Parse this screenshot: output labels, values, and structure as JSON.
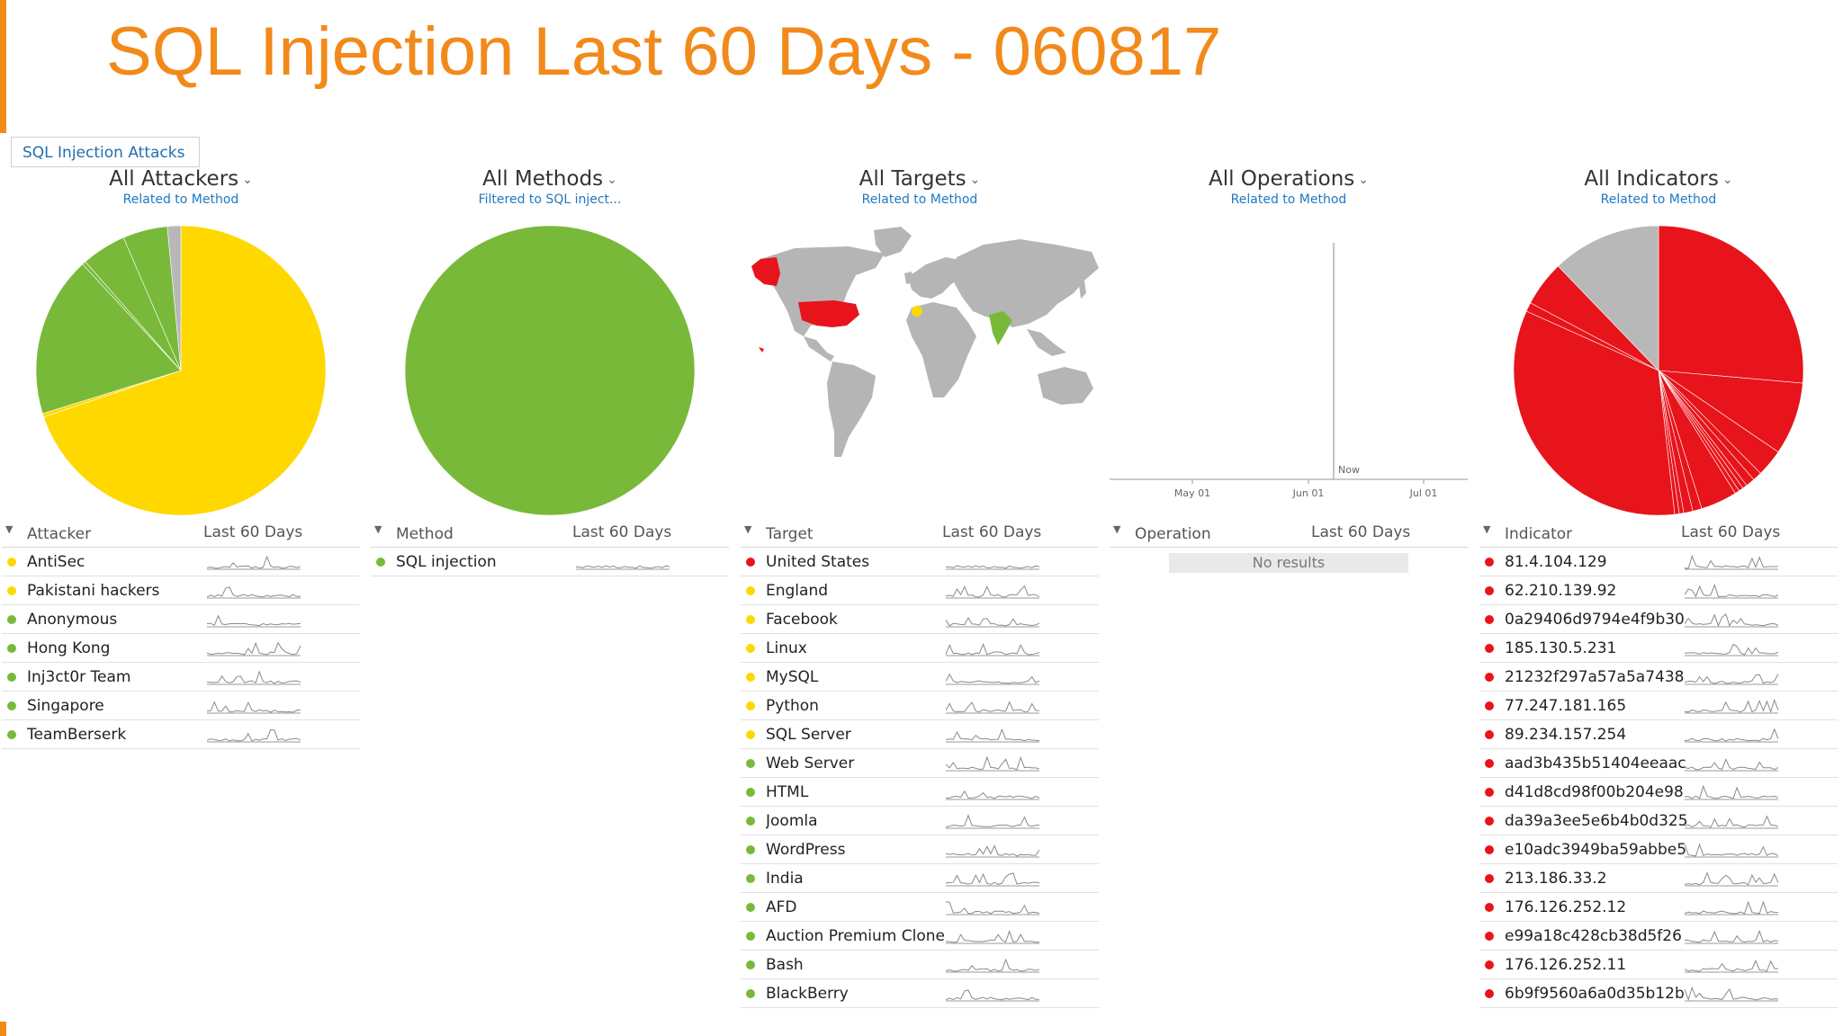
{
  "title": "SQL Injection Last 60 Days - 060817",
  "tab_label": "SQL Injection Attacks",
  "colors": {
    "accent": "#f28a1b",
    "red": "#e8141b",
    "yellow": "#ffd800",
    "green": "#79b93a",
    "gray": "#b8b8b8",
    "link": "#1f78c1"
  },
  "panels": {
    "attackers": {
      "title": "All Attackers",
      "subtitle": "Related to Method",
      "col1": "Attacker",
      "col2": "Last 60 Days",
      "chart_data": {
        "type": "pie",
        "slices": [
          {
            "label": "AntiSec",
            "value": 70,
            "color": "#ffd800"
          },
          {
            "label": "Pakistani hackers",
            "value": 0.4,
            "color": "#ffd800"
          },
          {
            "label": "Anonymous",
            "value": 18,
            "color": "#79b93a"
          },
          {
            "label": "Hong Kong",
            "value": 0.4,
            "color": "#79b93a"
          },
          {
            "label": "Inj3ct0r Team",
            "value": 5,
            "color": "#79b93a"
          },
          {
            "label": "Singapore",
            "value": 5,
            "color": "#79b93a"
          },
          {
            "label": "TeamBerserk",
            "value": 1.5,
            "color": "#b8b8b8"
          }
        ]
      },
      "rows": [
        {
          "label": "AntiSec",
          "status": "yellow"
        },
        {
          "label": "Pakistani hackers",
          "status": "yellow"
        },
        {
          "label": "Anonymous",
          "status": "green"
        },
        {
          "label": "Hong Kong",
          "status": "green"
        },
        {
          "label": "Inj3ct0r Team",
          "status": "green"
        },
        {
          "label": "Singapore",
          "status": "green"
        },
        {
          "label": "TeamBerserk",
          "status": "green"
        }
      ]
    },
    "methods": {
      "title": "All Methods",
      "subtitle": "Filtered to SQL inject...",
      "col1": "Method",
      "col2": "Last 60 Days",
      "chart_data": {
        "type": "pie",
        "slices": [
          {
            "label": "SQL injection",
            "value": 100,
            "color": "#79b93a"
          }
        ]
      },
      "rows": [
        {
          "label": "SQL injection",
          "status": "green"
        }
      ]
    },
    "targets": {
      "title": "All Targets",
      "subtitle": "Related to Method",
      "col1": "Target",
      "col2": "Last 60 Days",
      "map_highlights": [
        {
          "region": "United States",
          "color": "#e8141b"
        },
        {
          "region": "Alaska",
          "color": "#e8141b"
        },
        {
          "region": "England",
          "color": "#ffd800"
        },
        {
          "region": "India",
          "color": "#79b93a"
        }
      ],
      "rows": [
        {
          "label": "United States",
          "status": "red"
        },
        {
          "label": "England",
          "status": "yellow"
        },
        {
          "label": "Facebook",
          "status": "yellow"
        },
        {
          "label": "Linux",
          "status": "yellow"
        },
        {
          "label": "MySQL",
          "status": "yellow"
        },
        {
          "label": "Python",
          "status": "yellow"
        },
        {
          "label": "SQL Server",
          "status": "yellow"
        },
        {
          "label": "Web Server",
          "status": "green"
        },
        {
          "label": "HTML",
          "status": "green"
        },
        {
          "label": "Joomla",
          "status": "green"
        },
        {
          "label": "WordPress",
          "status": "green"
        },
        {
          "label": "India",
          "status": "green"
        },
        {
          "label": "AFD",
          "status": "green"
        },
        {
          "label": "Auction Premium Clone",
          "status": "green"
        },
        {
          "label": "Bash",
          "status": "green"
        },
        {
          "label": "BlackBerry",
          "status": "green"
        }
      ]
    },
    "operations": {
      "title": "All Operations",
      "subtitle": "Related to Method",
      "col1": "Operation",
      "col2": "Last 60 Days",
      "chart_data": {
        "type": "line",
        "x_ticks": [
          "May 01",
          "Jun 01",
          "Jul 01"
        ],
        "now_label": "Now",
        "series": []
      },
      "no_results": "No results"
    },
    "indicators": {
      "title": "All Indicators",
      "subtitle": "Related to Method",
      "col1": "Indicator",
      "col2": "Last 60 Days",
      "chart_data": {
        "type": "pie",
        "slices": [
          {
            "label": "81.4.104.129",
            "value": 26,
            "color": "#e8141b"
          },
          {
            "label": "62.210.139.92",
            "value": 8,
            "color": "#e8141b"
          },
          {
            "label": "0a29406d9794e4f9b30",
            "value": 3,
            "color": "#e8141b"
          },
          {
            "label": "185.130.5.231",
            "value": 1,
            "color": "#e8141b"
          },
          {
            "label": "21232f297a57a5a7438",
            "value": 1,
            "color": "#e8141b"
          },
          {
            "label": "77.247.181.165",
            "value": 0.5,
            "color": "#e8141b"
          },
          {
            "label": "89.234.157.254",
            "value": 0.5,
            "color": "#e8141b"
          },
          {
            "label": "aad3b435b51404eeaac",
            "value": 0.5,
            "color": "#e8141b"
          },
          {
            "label": "d41d8cd98f00b204e98",
            "value": 4,
            "color": "#e8141b"
          },
          {
            "label": "da39a3ee5e6b4b0d325",
            "value": 1,
            "color": "#e8141b"
          },
          {
            "label": "e10adc3949ba59abbe5",
            "value": 1,
            "color": "#e8141b"
          },
          {
            "label": "213.186.33.2",
            "value": 0.5,
            "color": "#e8141b"
          },
          {
            "label": "176.126.252.12",
            "value": 0.5,
            "color": "#e8141b"
          },
          {
            "label": "e99a18c428cb38d5f26",
            "value": 33,
            "color": "#e8141b"
          },
          {
            "label": "176.126.252.11",
            "value": 1,
            "color": "#e8141b"
          },
          {
            "label": "6b9f9560a6a0d35b12b",
            "value": 5,
            "color": "#e8141b"
          },
          {
            "label": "Other",
            "value": 12,
            "color": "#b8b8b8"
          }
        ]
      },
      "rows": [
        {
          "label": "81.4.104.129",
          "status": "red"
        },
        {
          "label": "62.210.139.92",
          "status": "red"
        },
        {
          "label": "0a29406d9794e4f9b30",
          "status": "red"
        },
        {
          "label": "185.130.5.231",
          "status": "red"
        },
        {
          "label": "21232f297a57a5a7438",
          "status": "red"
        },
        {
          "label": "77.247.181.165",
          "status": "red"
        },
        {
          "label": "89.234.157.254",
          "status": "red"
        },
        {
          "label": "aad3b435b51404eeaac",
          "status": "red"
        },
        {
          "label": "d41d8cd98f00b204e98",
          "status": "red"
        },
        {
          "label": "da39a3ee5e6b4b0d325",
          "status": "red"
        },
        {
          "label": "e10adc3949ba59abbe5",
          "status": "red"
        },
        {
          "label": "213.186.33.2",
          "status": "red"
        },
        {
          "label": "176.126.252.12",
          "status": "red"
        },
        {
          "label": "e99a18c428cb38d5f26",
          "status": "red"
        },
        {
          "label": "176.126.252.11",
          "status": "red"
        },
        {
          "label": "6b9f9560a6a0d35b12b",
          "status": "red"
        }
      ]
    }
  }
}
